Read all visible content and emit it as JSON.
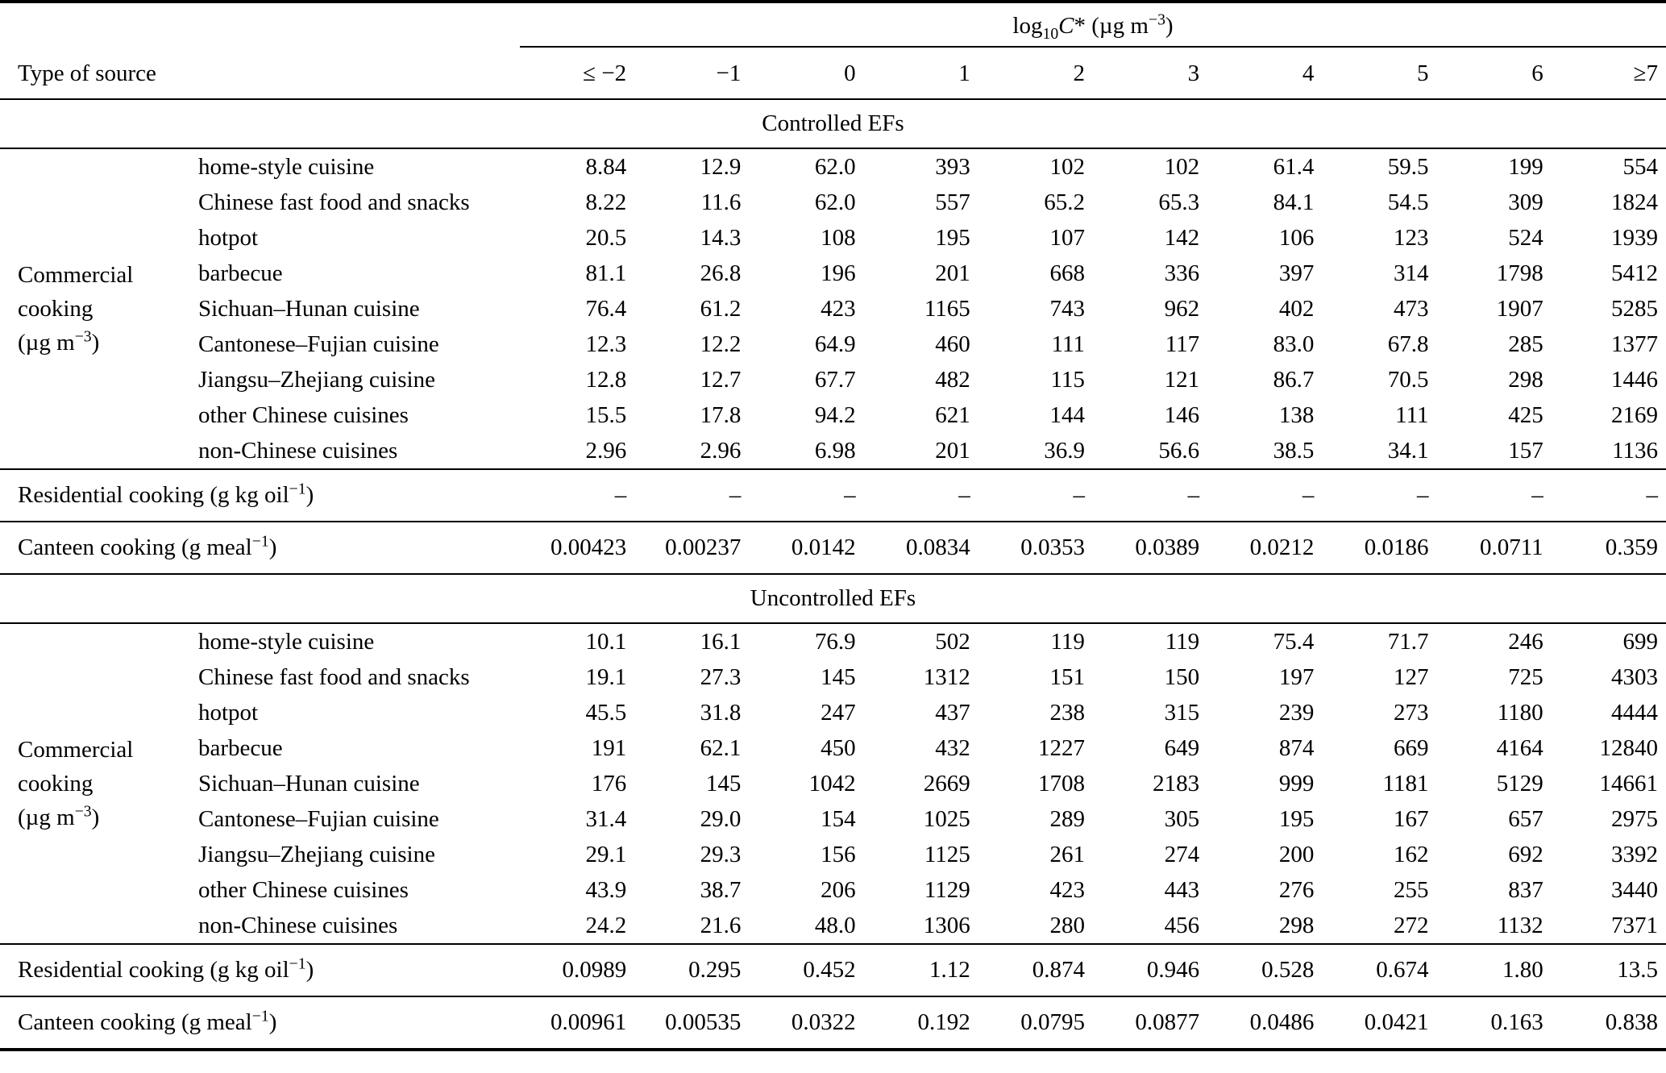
{
  "page": {
    "background": "#ffffff",
    "text_color": "#000000"
  },
  "table": {
    "col_group_header_html": "log<sub>10</sub><i>C</i>* (µg m<sup>−3</sup>)",
    "row_header": "Type of source",
    "columns": [
      "≤ −2",
      "−1",
      "0",
      "1",
      "2",
      "3",
      "4",
      "5",
      "6",
      "≥7"
    ],
    "commercial_group_label_html": "Commercial<br>cooking<br>(µg m<sup>−3</sup>)",
    "residential_label_html": "Residential cooking (g kg oil<sup>−1</sup>)",
    "canteen_label_html": "Canteen cooking (g meal<sup>−1</sup>)",
    "sections": [
      {
        "title": "Controlled EFs",
        "commercial_rows": [
          {
            "label": "home-style cuisine",
            "values": [
              "8.84",
              "12.9",
              "62.0",
              "393",
              "102",
              "102",
              "61.4",
              "59.5",
              "199",
              "554"
            ]
          },
          {
            "label": "Chinese fast food and snacks",
            "values": [
              "8.22",
              "11.6",
              "62.0",
              "557",
              "65.2",
              "65.3",
              "84.1",
              "54.5",
              "309",
              "1824"
            ]
          },
          {
            "label": "hotpot",
            "values": [
              "20.5",
              "14.3",
              "108",
              "195",
              "107",
              "142",
              "106",
              "123",
              "524",
              "1939"
            ]
          },
          {
            "label": "barbecue",
            "values": [
              "81.1",
              "26.8",
              "196",
              "201",
              "668",
              "336",
              "397",
              "314",
              "1798",
              "5412"
            ]
          },
          {
            "label": "Sichuan–Hunan cuisine",
            "values": [
              "76.4",
              "61.2",
              "423",
              "1165",
              "743",
              "962",
              "402",
              "473",
              "1907",
              "5285"
            ]
          },
          {
            "label": "Cantonese–Fujian cuisine",
            "values": [
              "12.3",
              "12.2",
              "64.9",
              "460",
              "111",
              "117",
              "83.0",
              "67.8",
              "285",
              "1377"
            ]
          },
          {
            "label": "Jiangsu–Zhejiang cuisine",
            "values": [
              "12.8",
              "12.7",
              "67.7",
              "482",
              "115",
              "121",
              "86.7",
              "70.5",
              "298",
              "1446"
            ]
          },
          {
            "label": "other Chinese cuisines",
            "values": [
              "15.5",
              "17.8",
              "94.2",
              "621",
              "144",
              "146",
              "138",
              "111",
              "425",
              "2169"
            ]
          },
          {
            "label": "non-Chinese cuisines",
            "values": [
              "2.96",
              "2.96",
              "6.98",
              "201",
              "36.9",
              "56.6",
              "38.5",
              "34.1",
              "157",
              "1136"
            ]
          }
        ],
        "residential_values": [
          "–",
          "–",
          "–",
          "–",
          "–",
          "–",
          "–",
          "–",
          "–",
          "–"
        ],
        "canteen_values": [
          "0.00423",
          "0.00237",
          "0.0142",
          "0.0834",
          "0.0353",
          "0.0389",
          "0.0212",
          "0.0186",
          "0.0711",
          "0.359"
        ]
      },
      {
        "title": "Uncontrolled EFs",
        "commercial_rows": [
          {
            "label": "home-style cuisine",
            "values": [
              "10.1",
              "16.1",
              "76.9",
              "502",
              "119",
              "119",
              "75.4",
              "71.7",
              "246",
              "699"
            ]
          },
          {
            "label": "Chinese fast food and snacks",
            "values": [
              "19.1",
              "27.3",
              "145",
              "1312",
              "151",
              "150",
              "197",
              "127",
              "725",
              "4303"
            ]
          },
          {
            "label": "hotpot",
            "values": [
              "45.5",
              "31.8",
              "247",
              "437",
              "238",
              "315",
              "239",
              "273",
              "1180",
              "4444"
            ]
          },
          {
            "label": "barbecue",
            "values": [
              "191",
              "62.1",
              "450",
              "432",
              "1227",
              "649",
              "874",
              "669",
              "4164",
              "12840"
            ]
          },
          {
            "label": "Sichuan–Hunan cuisine",
            "values": [
              "176",
              "145",
              "1042",
              "2669",
              "1708",
              "2183",
              "999",
              "1181",
              "5129",
              "14661"
            ]
          },
          {
            "label": "Cantonese–Fujian cuisine",
            "values": [
              "31.4",
              "29.0",
              "154",
              "1025",
              "289",
              "305",
              "195",
              "167",
              "657",
              "2975"
            ]
          },
          {
            "label": "Jiangsu–Zhejiang cuisine",
            "values": [
              "29.1",
              "29.3",
              "156",
              "1125",
              "261",
              "274",
              "200",
              "162",
              "692",
              "3392"
            ]
          },
          {
            "label": "other Chinese cuisines",
            "values": [
              "43.9",
              "38.7",
              "206",
              "1129",
              "423",
              "443",
              "276",
              "255",
              "837",
              "3440"
            ]
          },
          {
            "label": "non-Chinese cuisines",
            "values": [
              "24.2",
              "21.6",
              "48.0",
              "1306",
              "280",
              "456",
              "298",
              "272",
              "1132",
              "7371"
            ]
          }
        ],
        "residential_values": [
          "0.0989",
          "0.295",
          "0.452",
          "1.12",
          "0.874",
          "0.946",
          "0.528",
          "0.674",
          "1.80",
          "13.5"
        ],
        "canteen_values": [
          "0.00961",
          "0.00535",
          "0.0322",
          "0.192",
          "0.0795",
          "0.0877",
          "0.0486",
          "0.0421",
          "0.163",
          "0.838"
        ]
      }
    ]
  }
}
